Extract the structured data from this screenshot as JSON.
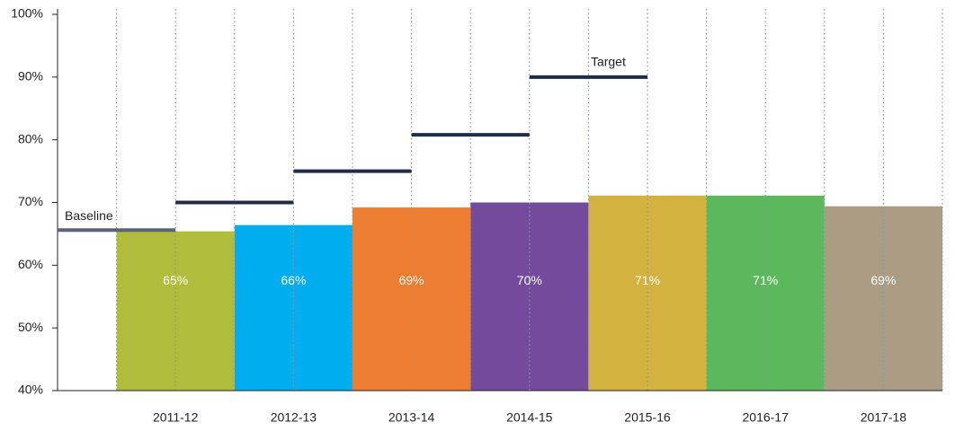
{
  "chart_data": {
    "type": "bar",
    "categories": [
      "2011-12",
      "2012-13",
      "2013-14",
      "2014-15",
      "2015-16",
      "2016-17",
      "2017-18"
    ],
    "values": [
      65.4,
      66.4,
      69.2,
      70.0,
      71.1,
      71.1,
      69.4
    ],
    "value_labels": [
      "65%",
      "66%",
      "69%",
      "70%",
      "71%",
      "71%",
      "69%"
    ],
    "colors": [
      "#b0bd3c",
      "#00aeef",
      "#ed7d31",
      "#744a9d",
      "#d4b240",
      "#5cb85c",
      "#ab9d84"
    ],
    "ylim": [
      40,
      100
    ],
    "yticks": [
      {
        "value": 40,
        "label": "40%"
      },
      {
        "value": 50,
        "label": "50%"
      },
      {
        "value": 60,
        "label": "60%"
      },
      {
        "value": 70,
        "label": "70%"
      },
      {
        "value": 80,
        "label": "80%"
      },
      {
        "value": 90,
        "label": "90%"
      },
      {
        "value": 100,
        "label": "100%"
      }
    ],
    "baseline": {
      "label": "Baseline",
      "value": 65.6,
      "color": "#5a6378"
    },
    "targets": {
      "label": "Target",
      "values": [
        70,
        75,
        80.8,
        90
      ],
      "color": "#1f2d4a"
    }
  }
}
